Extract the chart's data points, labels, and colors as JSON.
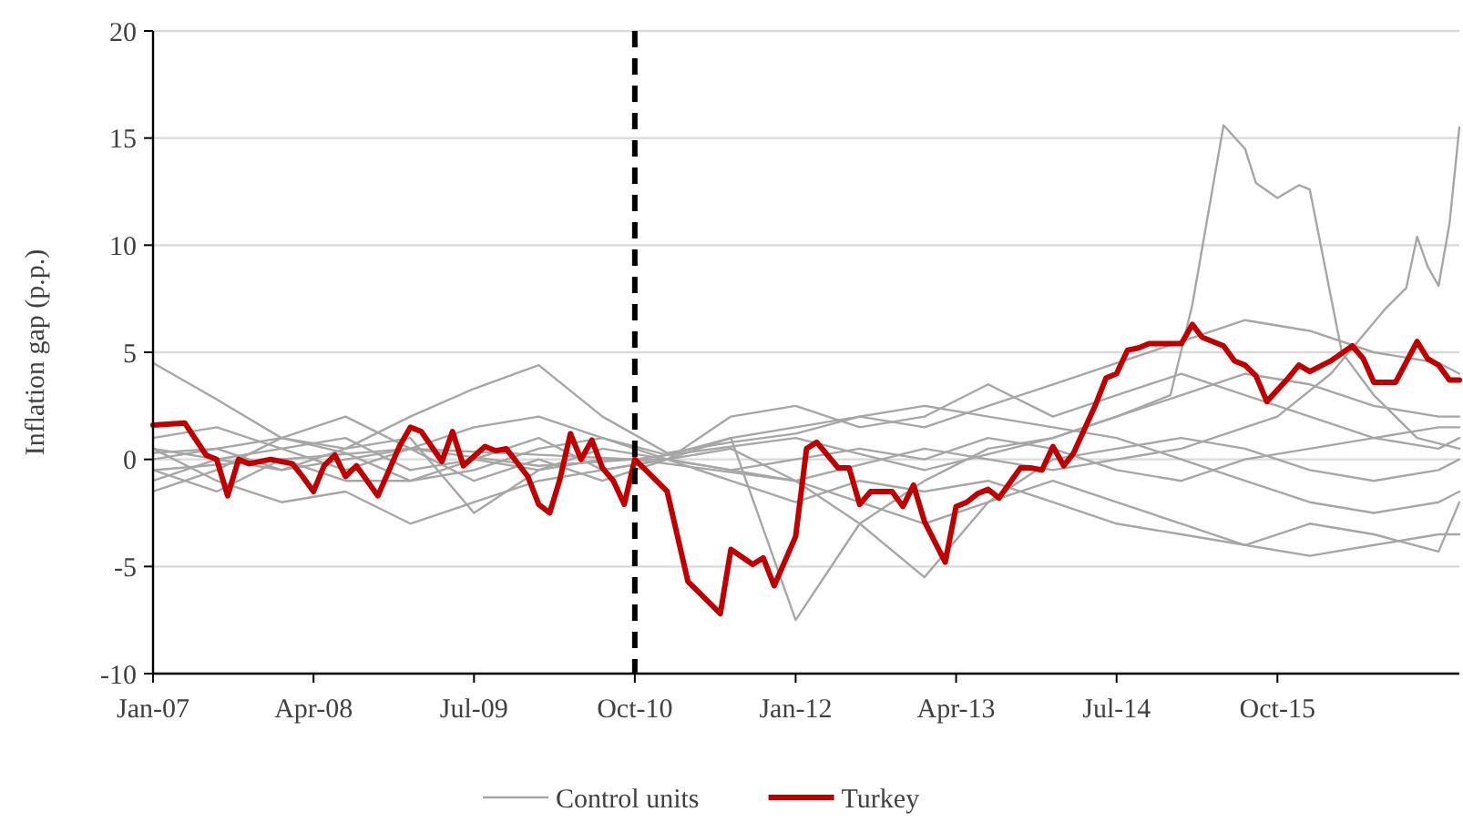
{
  "chart_data": {
    "type": "line",
    "ylabel": "Inflation gap (p.p.)",
    "x": [
      "2007-01",
      "2007-07",
      "2008-01",
      "2008-07",
      "2009-01",
      "2009-07",
      "2010-01",
      "2010-07",
      "2011-01",
      "2011-07",
      "2012-01",
      "2012-07",
      "2013-01",
      "2013-07",
      "2014-01",
      "2014-07",
      "2015-01",
      "2015-07",
      "2016-01",
      "2016-07",
      "2017-01",
      "2017-03"
    ],
    "xlim": [
      "2007-01",
      "2017-03"
    ],
    "xticks": [
      {
        "value": "2007-01",
        "label": "Jan-07"
      },
      {
        "value": "2008-04",
        "label": "Apr-08"
      },
      {
        "value": "2009-07",
        "label": "Jul-09"
      },
      {
        "value": "2010-10",
        "label": "Oct-10"
      },
      {
        "value": "2012-01",
        "label": "Jan-12"
      },
      {
        "value": "2013-04",
        "label": "Apr-13"
      },
      {
        "value": "2014-07",
        "label": "Jul-14"
      },
      {
        "value": "2015-10",
        "label": "Oct-15"
      }
    ],
    "ylim": [
      -10,
      20
    ],
    "yticks": [
      -10,
      -5,
      0,
      5,
      10,
      15,
      20
    ],
    "grid": "y",
    "legend": "bottom",
    "ref_lines": [
      {
        "axis": "x",
        "value": "2010-10",
        "color": "#000000",
        "line_style": "dashed"
      }
    ],
    "series": [
      {
        "name": "Control units",
        "color": "#a6a6a6",
        "values": [
          4.5,
          2.8,
          1,
          0.5,
          2,
          3.3,
          4.4,
          2,
          0.3,
          0.8,
          1.2,
          2,
          1.5,
          2.5,
          3.5,
          4.5,
          5.5,
          6.5,
          6,
          5,
          4.5,
          4
        ]
      },
      {
        "color": "#a6a6a6",
        "values": [
          0.5,
          -1,
          -2,
          -1.5,
          -3,
          -2,
          -1,
          -0.5,
          0,
          0.5,
          -1,
          -2,
          -3,
          -2,
          -1,
          -2,
          -3,
          -4,
          -4.5,
          -4,
          -3.5,
          -3.5
        ]
      },
      {
        "color": "#a6a6a6",
        "values": [
          0,
          0.5,
          1,
          0.3,
          -1,
          -0.5,
          0.5,
          1,
          0.2,
          1,
          -7.5,
          -3,
          -1,
          0.5,
          1,
          2,
          3,
          4,
          3.5,
          2.5,
          2,
          2
        ]
      },
      {
        "color": "#a6a6a6",
        "values": [
          -1,
          0,
          0.5,
          1,
          -0.5,
          0,
          1,
          -0.5,
          0,
          -0.5,
          -1,
          -3,
          -5.5,
          -2,
          0,
          0.5,
          1,
          0.5,
          -0.5,
          -1,
          -0.5,
          0
        ]
      },
      {
        "color": "#a6a6a6",
        "values": [
          1,
          1.5,
          0.5,
          -0.5,
          0.5,
          1.5,
          2,
          1,
          0,
          1,
          1.5,
          2,
          2.5,
          2,
          1.5,
          1,
          0,
          -1,
          -2,
          -2.5,
          -2,
          -1.5
        ]
      },
      {
        "color": "#a6a6a6",
        "values": [
          -0.5,
          -1.5,
          0,
          -1,
          -1,
          0,
          -0.5,
          0.5,
          0,
          -0.5,
          0,
          0.5,
          0,
          1,
          0.5,
          -0.5,
          -1,
          0,
          0.5,
          1,
          1.5,
          1.5
        ]
      },
      {
        "color": "#a6a6a6",
        "values": [
          0.3,
          0.5,
          -0.5,
          0.5,
          1,
          -2.5,
          -0.5,
          0,
          0,
          -1,
          -2,
          -1,
          -1.5,
          -1,
          -2,
          -3,
          -3.5,
          -4,
          -3,
          -3.5,
          -4.3,
          -2
        ]
      },
      {
        "color": "#a6a6a6",
        "values": [
          -1.5,
          -0.5,
          1,
          2,
          0.5,
          -1,
          0,
          -1,
          0,
          2,
          2.5,
          1.5,
          2,
          3.5,
          2,
          3,
          4,
          3,
          2,
          1,
          0.5,
          1
        ]
      },
      {
        "color": "#a6a6a6",
        "x": [
          "2007-01",
          "2008-01",
          "2009-01",
          "2010-01",
          "2010-10",
          "2012-01",
          "2013-01",
          "2014-01",
          "2014-07",
          "2014-12",
          "2015-02",
          "2015-05",
          "2015-07",
          "2015-08",
          "2015-10",
          "2015-12",
          "2016-01",
          "2016-04",
          "2016-07",
          "2016-11",
          "2017-03"
        ],
        "values": [
          0.5,
          -0.5,
          0.5,
          -0.3,
          0,
          1,
          -0.5,
          1,
          2,
          3,
          7.2,
          15.6,
          14.5,
          12.9,
          12.2,
          12.8,
          12.6,
          5,
          3,
          1,
          0.5
        ]
      },
      {
        "color": "#a6a6a6",
        "x": [
          "2007-01",
          "2009-01",
          "2010-10",
          "2012-01",
          "2013-01",
          "2014-01",
          "2015-01",
          "2015-10",
          "2016-03",
          "2016-08",
          "2016-10",
          "2016-11",
          "2016-12",
          "2017-01",
          "2017-02",
          "2017-03"
        ],
        "values": [
          -0.5,
          0.5,
          0,
          -1,
          0.5,
          -0.5,
          0.5,
          2,
          4,
          7,
          8,
          10.4,
          9,
          8.1,
          11,
          15.5
        ]
      },
      {
        "name": "Turkey",
        "color": "#c00000",
        "x": [
          "2007-01",
          "2007-04",
          "2007-06",
          "2007-07",
          "2007-08",
          "2007-09",
          "2007-10",
          "2007-12",
          "2008-02",
          "2008-03",
          "2008-04",
          "2008-05",
          "2008-06",
          "2008-07",
          "2008-08",
          "2008-10",
          "2008-12",
          "2009-01",
          "2009-02",
          "2009-04",
          "2009-05",
          "2009-06",
          "2009-08",
          "2009-09",
          "2009-10",
          "2009-12",
          "2010-01",
          "2010-02",
          "2010-03",
          "2010-04",
          "2010-05",
          "2010-06",
          "2010-07",
          "2010-08",
          "2010-09",
          "2010-10",
          "2010-11",
          "2011-01",
          "2011-03",
          "2011-06",
          "2011-07",
          "2011-09",
          "2011-10",
          "2011-11",
          "2012-01",
          "2012-02",
          "2012-03",
          "2012-05",
          "2012-06",
          "2012-07",
          "2012-08",
          "2012-10",
          "2012-11",
          "2012-12",
          "2013-01",
          "2013-03",
          "2013-04",
          "2013-05",
          "2013-06",
          "2013-07",
          "2013-08",
          "2013-10",
          "2013-11",
          "2013-12",
          "2014-01",
          "2014-02",
          "2014-03",
          "2014-05",
          "2014-06",
          "2014-07",
          "2014-08",
          "2014-09",
          "2014-10",
          "2015-01",
          "2015-02",
          "2015-03",
          "2015-05",
          "2015-06",
          "2015-07",
          "2015-08",
          "2015-09",
          "2015-11",
          "2015-12",
          "2016-01",
          "2016-03",
          "2016-05",
          "2016-06",
          "2016-07",
          "2016-09",
          "2016-11",
          "2016-12",
          "2017-01",
          "2017-02",
          "2017-03"
        ],
        "values": [
          1.6,
          1.7,
          0.2,
          0,
          -1.7,
          0,
          -0.2,
          0,
          -0.2,
          -0.8,
          -1.5,
          -0.3,
          0.2,
          -0.8,
          -0.3,
          -1.7,
          0.6,
          1.5,
          1.3,
          -0.1,
          1.3,
          -0.3,
          0.6,
          0.4,
          0.5,
          -0.8,
          -2.1,
          -2.5,
          -1,
          1.2,
          0,
          0.9,
          -0.4,
          -1,
          -2.1,
          0,
          -0.5,
          -1.5,
          -5.7,
          -7.2,
          -4.2,
          -4.9,
          -4.6,
          -5.9,
          -3.6,
          0.5,
          0.8,
          -0.4,
          -0.4,
          -2.1,
          -1.5,
          -1.5,
          -2.2,
          -1.2,
          -2.9,
          -4.8,
          -2.2,
          -2,
          -1.6,
          -1.4,
          -1.8,
          -0.4,
          -0.4,
          -0.5,
          0.6,
          -0.3,
          0.3,
          2.5,
          3.8,
          4,
          5.1,
          5.2,
          5.4,
          5.4,
          6.3,
          5.7,
          5.3,
          4.6,
          4.4,
          3.9,
          2.7,
          3.8,
          4.4,
          4.1,
          4.6,
          5.3,
          4.7,
          3.6,
          3.6,
          5.5,
          4.7,
          4.4,
          3.7,
          3.7
        ]
      }
    ]
  }
}
